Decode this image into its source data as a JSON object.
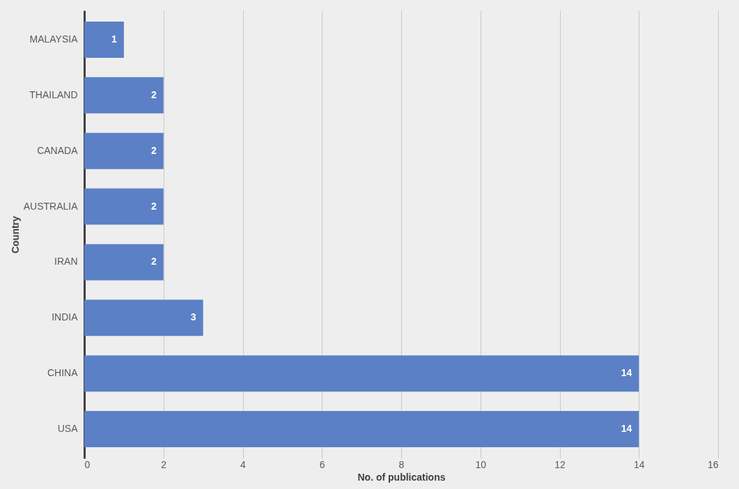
{
  "chart_data": {
    "type": "bar",
    "orientation": "horizontal",
    "xlabel": "No. of publications",
    "ylabel": "Country",
    "categories": [
      "MALAYSIA",
      "THAILAND",
      "CANADA",
      "AUSTRALIA",
      "IRAN",
      "INDIA",
      "CHINA",
      "USA"
    ],
    "values": [
      1,
      2,
      2,
      2,
      2,
      3,
      14,
      14
    ],
    "color": "#5b80c6",
    "xlim": [
      0,
      16
    ],
    "xticks": [
      0,
      2,
      4,
      6,
      8,
      10,
      12,
      14,
      16
    ],
    "grid": "x",
    "data_labels": true
  }
}
